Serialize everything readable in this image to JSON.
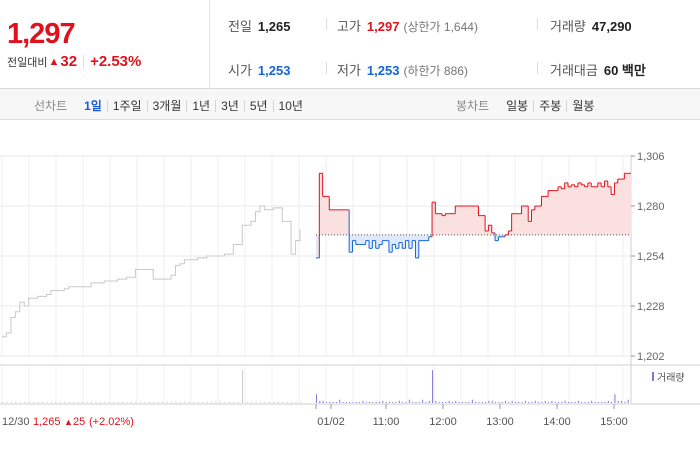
{
  "summary": {
    "current_price": "1,297",
    "change_label": "전일대비",
    "change_arrow": "▲",
    "change_value": "32",
    "change_rate": "+2.53%",
    "prev_close_label": "전일",
    "prev_close": "1,265",
    "high_label": "고가",
    "high": "1,297",
    "upper_limit": "(상한가 1,644)",
    "volume_label": "거래량",
    "volume": "47,290",
    "open_label": "시가",
    "open": "1,253",
    "low_label": "저가",
    "low": "1,253",
    "lower_limit": "(하한가 886)",
    "amount_label": "거래대금",
    "amount": "60 백만"
  },
  "toolbar": {
    "line_title": "선차트",
    "line_periods": [
      "1일",
      "1주일",
      "3개월",
      "1년",
      "3년",
      "5년",
      "10년"
    ],
    "active_period": "1일",
    "candle_title": "봉차트",
    "candle_periods": [
      "일봉",
      "주봉",
      "월봉"
    ]
  },
  "chart_data": {
    "type": "line",
    "y_ticks": [
      "1,306",
      "1,280",
      "1,254",
      "1,228",
      "1,202"
    ],
    "ylim": [
      1202,
      1306
    ],
    "reference_price": 1265,
    "x_ticks": [
      "01/02",
      "11:00",
      "12:00",
      "13:00",
      "14:00",
      "15:00"
    ],
    "volume_legend": "거래량",
    "prev_day_info": {
      "date": "12/30",
      "price": "1,265",
      "arrow": "▲",
      "change": "25",
      "rate": "(+2.02%)"
    },
    "prev_day_series": [
      [
        1212,
        1214,
        1222,
        1225,
        1230,
        1228,
        1232,
        1232,
        1233,
        1233,
        1234,
        1236,
        1236,
        1236,
        1237,
        1238,
        1238,
        1238,
        1238,
        1238,
        1240,
        1240,
        1240,
        1241,
        1241,
        1241,
        1242,
        1242,
        1243,
        1243,
        1247,
        1247,
        1247,
        1247,
        1242,
        1242,
        1242,
        1242,
        1244,
        1249,
        1250,
        1252,
        1252,
        1252,
        1253,
        1253,
        1254,
        1254,
        1254,
        1254,
        1255,
        1255,
        1260,
        1260,
        1270,
        1270,
        1272,
        1277,
        1280,
        1278,
        1278,
        1279,
        1279,
        1272,
        1272,
        1255,
        1262,
        1268
      ]
    ],
    "today_series": [
      1253,
      1297,
      1285,
      1285,
      1278,
      1278,
      1278,
      1278,
      1278,
      1278,
      1256,
      1262,
      1260,
      1260,
      1260,
      1262,
      1258,
      1262,
      1258,
      1260,
      1262,
      1262,
      1256,
      1260,
      1258,
      1261,
      1258,
      1262,
      1258,
      1262,
      1253,
      1262,
      1262,
      1262,
      1264,
      1282,
      1276,
      1276,
      1275,
      1276,
      1276,
      1276,
      1280,
      1280,
      1280,
      1280,
      1280,
      1280,
      1280,
      1275,
      1275,
      1267,
      1270,
      1266,
      1262,
      1264,
      1264,
      1265,
      1267,
      1276,
      1276,
      1276,
      1280,
      1280,
      1272,
      1278,
      1280,
      1280,
      1285,
      1285,
      1288,
      1288,
      1288,
      1290,
      1289,
      1292,
      1290,
      1291,
      1290,
      1292,
      1291,
      1290,
      1292,
      1290,
      1290,
      1292,
      1290,
      1293,
      1290,
      1286,
      1292,
      1294,
      1294,
      1297,
      1297
    ],
    "volume_today": [
      8,
      2,
      2,
      1,
      1,
      1,
      1,
      3,
      1,
      1,
      1,
      1,
      1,
      1,
      2,
      1,
      1,
      1,
      1,
      1,
      2,
      1,
      1,
      1,
      1,
      2,
      1,
      1,
      3,
      1,
      1,
      1,
      3,
      1,
      2,
      30,
      2,
      1,
      1,
      1,
      2,
      1,
      2,
      1,
      1,
      1,
      1,
      3,
      1,
      1,
      1,
      1,
      2,
      2,
      1,
      1,
      1,
      2,
      1,
      2,
      1,
      1,
      1,
      2,
      1,
      1,
      2,
      1,
      1,
      2,
      1,
      2,
      1,
      1,
      1,
      2,
      1,
      1,
      1,
      2,
      1,
      1,
      1,
      2,
      1,
      1,
      1,
      1,
      2,
      1,
      8,
      2,
      2,
      1,
      3
    ],
    "volume_prev": [
      1,
      1,
      1,
      1,
      1,
      1,
      1,
      1,
      1,
      1,
      1,
      1,
      1,
      1,
      1,
      1,
      1,
      1,
      1,
      1,
      1,
      1,
      1,
      1,
      1,
      1,
      1,
      1,
      1,
      1,
      1,
      1,
      1,
      1,
      1,
      1,
      1,
      1,
      1,
      1,
      1,
      1,
      1,
      1,
      1,
      1,
      1,
      1,
      1,
      1,
      1,
      1,
      1,
      1,
      1,
      1,
      1,
      1,
      1,
      1,
      1,
      1,
      1,
      1,
      1,
      1,
      1,
      1
    ],
    "colors": {
      "up": "#e0111c",
      "down": "#1565d6",
      "prev": "#c8c8c8",
      "fill_up": "#fbe0e0",
      "fill_down": "#dde9fb"
    }
  }
}
